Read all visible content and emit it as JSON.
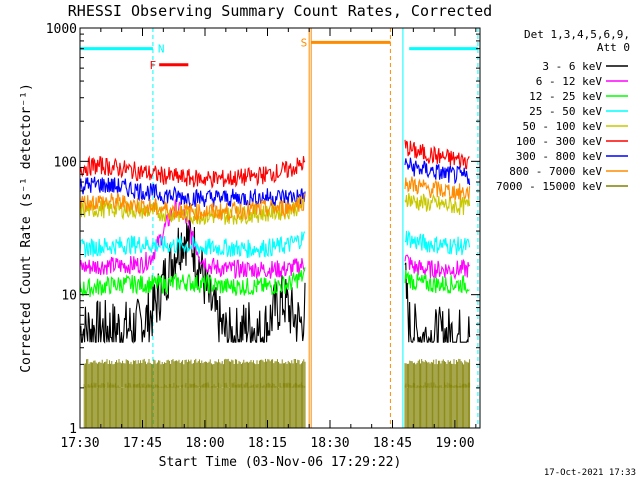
{
  "chart_data": {
    "type": "line",
    "title": "RHESSI Observing Summary Count Rates, Corrected",
    "xlabel": "Start Time (03-Nov-06 17:29:22)",
    "ylabel": "Corrected Count Rate (s⁻¹ detector⁻¹)",
    "yscale": "log",
    "ylim": [
      1,
      1000
    ],
    "xlim_minutes": [
      0,
      96
    ],
    "x_ticks": [
      {
        "minute": 0,
        "label": "17:30"
      },
      {
        "minute": 15,
        "label": "17:45"
      },
      {
        "minute": 30,
        "label": "18:00"
      },
      {
        "minute": 45,
        "label": "18:15"
      },
      {
        "minute": 60,
        "label": "18:30"
      },
      {
        "minute": 75,
        "label": "18:45"
      },
      {
        "minute": 90,
        "label": "19:00"
      }
    ],
    "y_ticks": [
      {
        "value": 1,
        "label": "1"
      },
      {
        "value": 10,
        "label": "10"
      },
      {
        "value": 100,
        "label": "100"
      },
      {
        "value": 1000,
        "label": "1000"
      }
    ],
    "legend_position": "right",
    "legend_header": [
      "Det 1,3,4,5,6,9,",
      "Att 0"
    ],
    "series": [
      {
        "name": "3 - 6 keV",
        "color": "#000000",
        "segments": [
          {
            "x": [
              0,
              5,
              10,
              14,
              17,
              19,
              21,
              23,
              25,
              27,
              29,
              31,
              33,
              35,
              37,
              39,
              41,
              43,
              45,
              47,
              49,
              51,
              53,
              54
            ],
            "y": [
              5.5,
              5.6,
              5.5,
              5.8,
              7,
              10,
              15,
              22,
              28,
              24,
              16,
              9,
              6.5,
              5,
              4.8,
              5.5,
              6,
              5,
              6,
              8,
              9,
              7,
              6,
              8
            ]
          },
          {
            "x": [
              78,
              79,
              81,
              84,
              88,
              92,
              93.5
            ],
            "y": [
              13,
              6,
              5,
              4.8,
              5,
              4.9,
              5
            ]
          }
        ]
      },
      {
        "name": "6 - 12 keV",
        "color": "#ff00ff",
        "segments": [
          {
            "x": [
              0,
              5,
              10,
              15,
              17,
              19,
              21,
              23,
              25,
              27,
              29,
              31,
              33,
              35,
              40,
              45,
              50,
              54
            ],
            "y": [
              16,
              16.5,
              16.5,
              17,
              19,
              25,
              35,
              45,
              40,
              26,
              19,
              16.5,
              16,
              15.5,
              15.5,
              15.5,
              15.5,
              17
            ]
          },
          {
            "x": [
              78,
              80,
              84,
              88,
              92,
              93.5
            ],
            "y": [
              19,
              16,
              15.5,
              15.5,
              15.5,
              15.5
            ]
          }
        ]
      },
      {
        "name": "12 - 25 keV",
        "color": "#00ff00",
        "segments": [
          {
            "x": [
              0,
              5,
              10,
              15,
              20,
              25,
              30,
              35,
              40,
              45,
              50,
              54
            ],
            "y": [
              11,
              11.5,
              12,
              12,
              12,
              12.5,
              12,
              11.5,
              11.5,
              11.5,
              12,
              14
            ]
          },
          {
            "x": [
              78,
              80,
              84,
              88,
              92,
              93.5
            ],
            "y": [
              14,
              12.5,
              12,
              12,
              12,
              12
            ]
          }
        ]
      },
      {
        "name": "25 - 50 keV",
        "color": "#00ffff",
        "segments": [
          {
            "x": [
              0,
              5,
              10,
              15,
              20,
              25,
              30,
              35,
              40,
              45,
              50,
              54
            ],
            "y": [
              22,
              23,
              23.5,
              24,
              23.5,
              23.5,
              22.5,
              22.5,
              22,
              22.5,
              23.5,
              27
            ]
          },
          {
            "x": [
              78,
              80,
              84,
              88,
              92,
              93.5
            ],
            "y": [
              28,
              25,
              24,
              23.5,
              23,
              23
            ]
          }
        ]
      },
      {
        "name": "50 - 100 keV",
        "color": "#c8c800",
        "segments": [
          {
            "x": [
              0,
              5,
              10,
              15,
              20,
              25,
              30,
              35,
              40,
              45,
              50,
              54
            ],
            "y": [
              43,
              44,
              44,
              43,
              41,
              40,
              39,
              39,
              40,
              41,
              43,
              48
            ]
          },
          {
            "x": [
              78,
              80,
              84,
              88,
              92,
              93.5
            ],
            "y": [
              55,
              50,
              48,
              47,
              46,
              46
            ]
          }
        ]
      },
      {
        "name": "100 - 300 keV",
        "color": "#ff0000",
        "segments": [
          {
            "x": [
              0,
              5,
              10,
              15,
              20,
              25,
              30,
              35,
              40,
              45,
              50,
              54
            ],
            "y": [
              90,
              93,
              88,
              83,
              78,
              75,
              74,
              74,
              76,
              80,
              86,
              97
            ]
          },
          {
            "x": [
              78,
              80,
              84,
              88,
              92,
              93.5
            ],
            "y": [
              130,
              120,
              112,
              106,
              102,
              102
            ]
          }
        ]
      },
      {
        "name": "300 - 800 keV",
        "color": "#0000ff",
        "segments": [
          {
            "x": [
              0,
              5,
              10,
              15,
              20,
              25,
              30,
              35,
              40,
              45,
              50,
              54
            ],
            "y": [
              66,
              67,
              64,
              60,
              56,
              54,
              53,
              53,
              53,
              54,
              54,
              55
            ]
          },
          {
            "x": [
              78,
              80,
              84,
              88,
              92,
              93.5
            ],
            "y": [
              95,
              90,
              85,
              80,
              77,
              77
            ]
          }
        ]
      },
      {
        "name": "800 - 7000 keV",
        "color": "#ff8c00",
        "segments": [
          {
            "x": [
              0,
              5,
              10,
              15,
              20,
              25,
              30,
              35,
              40,
              45,
              50,
              54
            ],
            "y": [
              49,
              50,
              49,
              46,
              44,
              42,
              42,
              42,
              43,
              44,
              45,
              51
            ]
          },
          {
            "x": [
              78,
              80,
              84,
              88,
              92,
              93.5
            ],
            "y": [
              70,
              66,
              62,
              60,
              58,
              58
            ]
          }
        ]
      },
      {
        "name": "7000 - 15000 keV",
        "color": "#808000",
        "segments": [
          {
            "x": [
              1,
              54
            ],
            "y": [
              3,
              3
            ]
          },
          {
            "x": [
              1,
              54
            ],
            "y": [
              2,
              2
            ]
          },
          {
            "x": [
              78,
              93.5
            ],
            "y": [
              3,
              3
            ]
          },
          {
            "x": [
              78,
              93.5
            ],
            "y": [
              2,
              2
            ]
          }
        ]
      }
    ],
    "markers": [
      {
        "label": "N",
        "color": "#00ffff",
        "x_start": 0,
        "x_end": 17.5,
        "level": 700
      },
      {
        "label": "F",
        "color": "#ff0000",
        "x_start": 19,
        "x_end": 26,
        "level": 530
      },
      {
        "label": "S",
        "color": "#ff8c00",
        "x_start": 55.5,
        "x_end": 74.5,
        "level": 780
      },
      {
        "label": "",
        "color": "#00ffff",
        "x_start": 79,
        "x_end": 95.5,
        "level": 700
      }
    ],
    "vlines": [
      {
        "minute": 0,
        "color": "#00ffff",
        "dashed": false
      },
      {
        "minute": 17.5,
        "color": "#00ffff",
        "dashed": true
      },
      {
        "minute": 55,
        "color": "#ff8c00",
        "dashed": false
      },
      {
        "minute": 74.5,
        "color": "#ff8c00",
        "dashed": true
      },
      {
        "minute": 77.5,
        "color": "#00ffff",
        "dashed": false
      },
      {
        "minute": 95.5,
        "color": "#00ffff",
        "dashed": true
      }
    ],
    "footer_timestamp": "17-Oct-2021 17:33"
  }
}
